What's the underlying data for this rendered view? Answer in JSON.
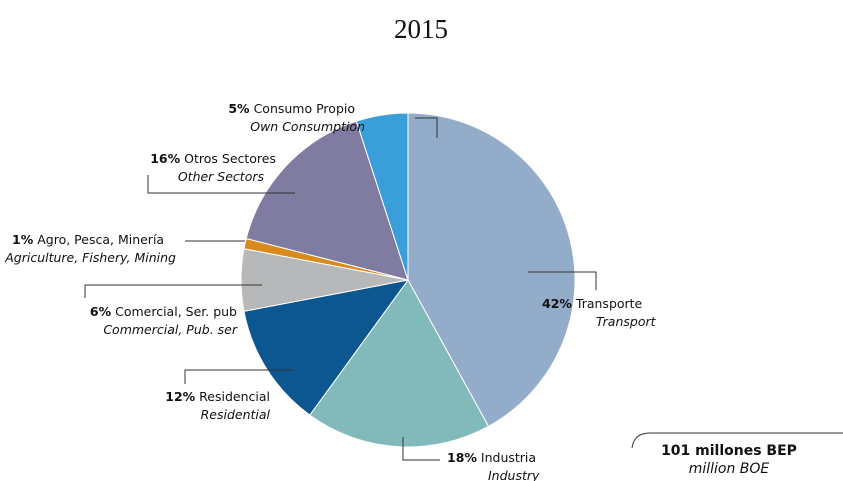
{
  "chart_data": {
    "type": "pie",
    "title": "2015",
    "categories": [
      "Transporte",
      "Industria",
      "Residencial",
      "Comercial, Ser. pub",
      "Agro, Pesca, Minería",
      "Otros Sectores",
      "Consumo Propio"
    ],
    "subtitles": [
      "Transport",
      "Industry",
      "Residential",
      "Commercial, Pub. ser",
      "Agriculture, Fishery, Mining",
      "Other Sectors",
      "Own Consumption"
    ],
    "values": [
      42,
      18,
      12,
      6,
      1,
      16,
      5
    ],
    "value_labels": [
      "42%",
      "18%",
      "12%",
      "6%",
      "1%",
      "16%",
      "5%"
    ],
    "colors": [
      "#92acc9",
      "#82b9bb",
      "#0d5790",
      "#b7b8ba",
      "#d98a1c",
      "#7f7ba1",
      "#3a9fd8"
    ],
    "annotation": {
      "title": "101 millones BEP",
      "subtitle": "million BOE"
    }
  }
}
